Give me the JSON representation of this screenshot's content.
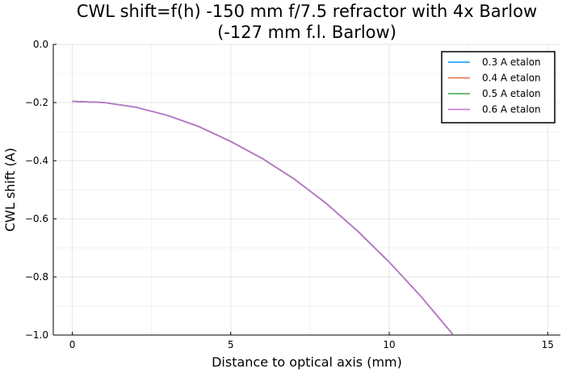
{
  "chart_data": {
    "type": "line",
    "title_line1": "CWL shift=f(h) -150 mm f/7.5 refractor with 4x Barlow",
    "title_line2": "(-127 mm f.l. Barlow)",
    "xlabel": "Distance to optical axis (mm)",
    "ylabel": "CWL shift (A)",
    "xlim": [
      -0.6,
      15.4
    ],
    "ylim": [
      -1.0,
      0.0
    ],
    "xticks": [
      0,
      5,
      10,
      15
    ],
    "xtick_labels": [
      "0",
      "5",
      "10",
      "15"
    ],
    "yticks": [
      0.0,
      -0.2,
      -0.4,
      -0.6,
      -0.8,
      -1.0
    ],
    "ytick_labels": [
      "0.0",
      "−0.2",
      "−0.4",
      "−0.6",
      "−0.8",
      "−1.0"
    ],
    "grid": true,
    "legend_position": "top-right",
    "x": [
      0,
      1,
      2,
      3,
      4,
      5,
      6,
      7,
      8,
      9,
      10,
      11,
      12
    ],
    "series": [
      {
        "name": "0.3 A etalon",
        "color": "#009af9",
        "values": [
          -0.196,
          -0.2,
          -0.216,
          -0.244,
          -0.283,
          -0.334,
          -0.393,
          -0.463,
          -0.546,
          -0.642,
          -0.749,
          -0.867,
          -0.997
        ]
      },
      {
        "name": "0.4 A etalon",
        "color": "#e26f46",
        "values": [
          -0.196,
          -0.2,
          -0.216,
          -0.244,
          -0.283,
          -0.334,
          -0.393,
          -0.463,
          -0.546,
          -0.642,
          -0.749,
          -0.867,
          -0.997
        ]
      },
      {
        "name": "0.5 A etalon",
        "color": "#3ea44e",
        "values": [
          -0.196,
          -0.2,
          -0.216,
          -0.244,
          -0.283,
          -0.334,
          -0.393,
          -0.463,
          -0.546,
          -0.642,
          -0.749,
          -0.867,
          -0.997
        ]
      },
      {
        "name": "0.6 A etalon",
        "color": "#c271d2",
        "values": [
          -0.196,
          -0.2,
          -0.216,
          -0.244,
          -0.283,
          -0.334,
          -0.393,
          -0.463,
          -0.546,
          -0.642,
          -0.749,
          -0.867,
          -0.997
        ]
      }
    ]
  }
}
